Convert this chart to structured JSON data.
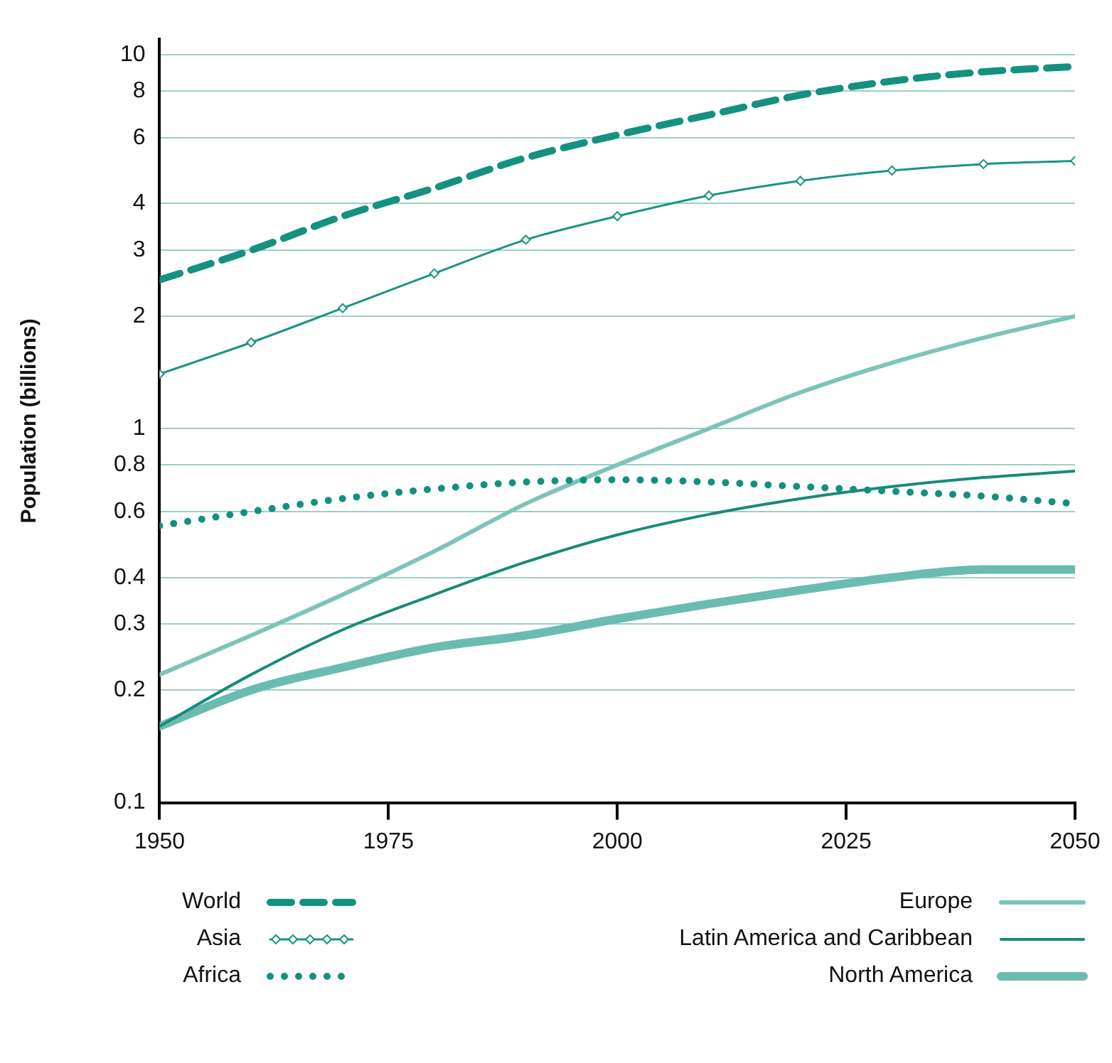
{
  "chart_data": {
    "type": "line",
    "ylabel": "Population (billions)",
    "log": "y",
    "x": [
      1950,
      1960,
      1970,
      1980,
      1990,
      2000,
      2010,
      2020,
      2030,
      2040,
      2050
    ],
    "xlim": [
      1950,
      2050
    ],
    "xticks": [
      1950,
      1975,
      2000,
      2025,
      2050
    ],
    "ylim": [
      0.1,
      11
    ],
    "yticks": [
      0.1,
      0.2,
      0.3,
      0.4,
      0.6,
      0.8,
      1,
      2,
      3,
      4,
      6,
      8,
      10
    ],
    "grid": "y",
    "legend": "bottom",
    "series": [
      {
        "name": "World",
        "color": "#14917f",
        "line_style": "dashed",
        "values": [
          2.5,
          3.0,
          3.7,
          4.4,
          5.3,
          6.1,
          6.9,
          7.8,
          8.5,
          9.0,
          9.3
        ]
      },
      {
        "name": "Asia",
        "color": "#1a9482",
        "marker": "diamond",
        "values": [
          1.4,
          1.7,
          2.1,
          2.6,
          3.2,
          3.7,
          4.2,
          4.6,
          4.9,
          5.1,
          5.2
        ]
      },
      {
        "name": "Africa",
        "color": "#13907f",
        "line_style": "dotted",
        "values": [
          0.55,
          0.6,
          0.65,
          0.69,
          0.72,
          0.73,
          0.72,
          0.7,
          0.68,
          0.66,
          0.63
        ]
      },
      {
        "name": "Europe",
        "color": "#7cc4ba",
        "line_style": "solid",
        "values": [
          0.22,
          0.28,
          0.36,
          0.47,
          0.63,
          0.8,
          1.0,
          1.25,
          1.5,
          1.75,
          2.0
        ]
      },
      {
        "name": "Latin America and Caribbean",
        "color": "#1a8a78",
        "line_style": "solid",
        "values": [
          0.16,
          0.22,
          0.29,
          0.36,
          0.44,
          0.52,
          0.59,
          0.65,
          0.7,
          0.74,
          0.77
        ]
      },
      {
        "name": "North America",
        "color": "#6bbcb0",
        "line_style": "solid",
        "values": [
          0.16,
          0.2,
          0.23,
          0.26,
          0.28,
          0.31,
          0.34,
          0.37,
          0.4,
          0.42,
          0.42
        ]
      }
    ]
  }
}
